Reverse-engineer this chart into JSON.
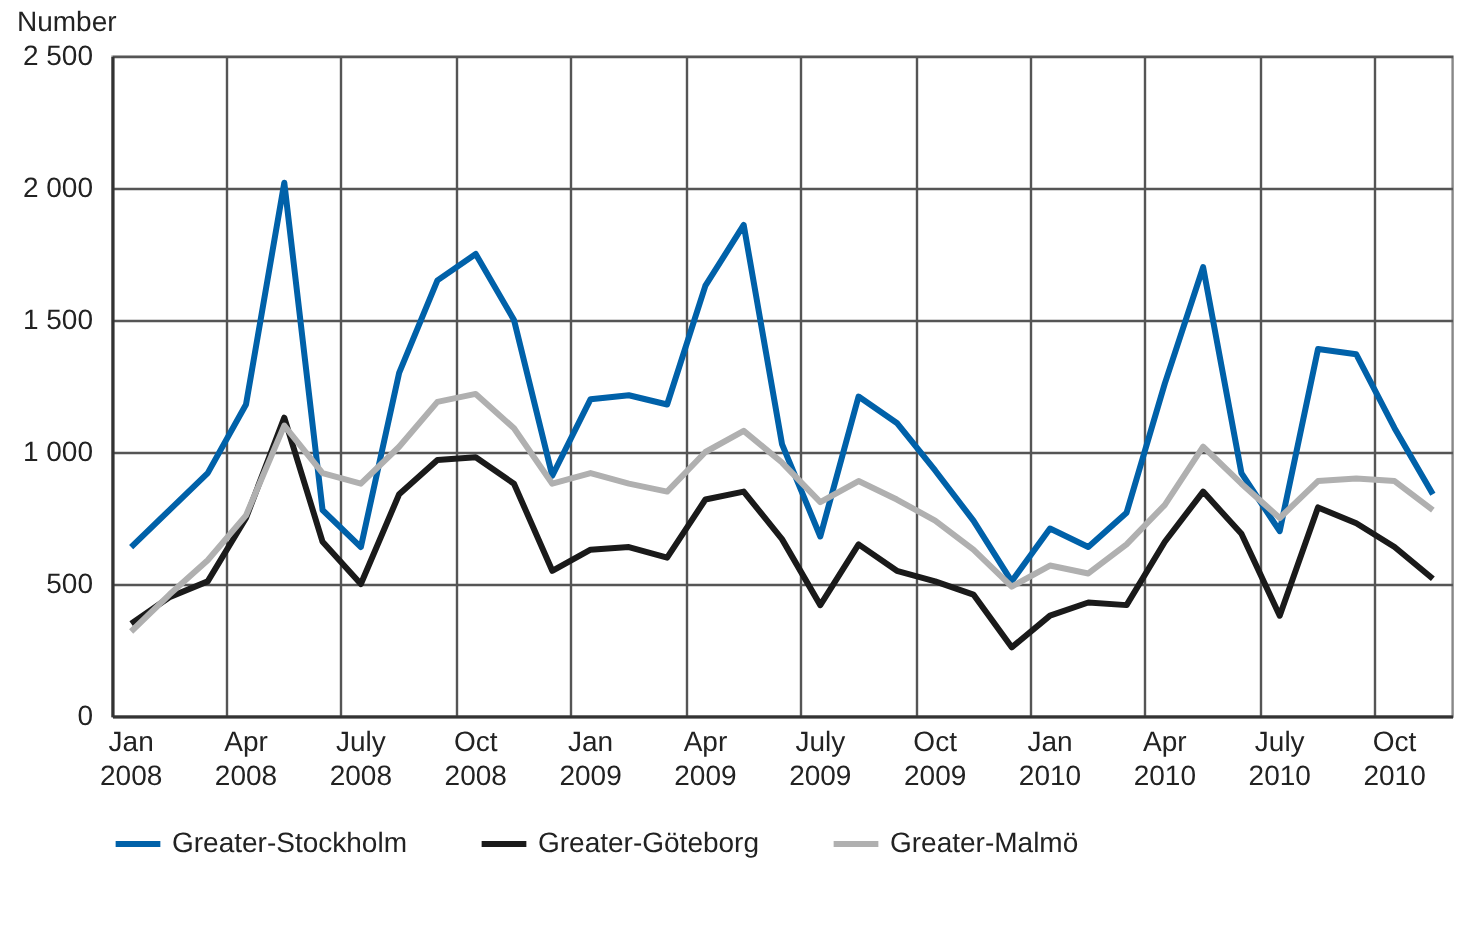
{
  "chart_data": {
    "type": "line",
    "ylabel": "Number",
    "categories": [
      "Jan 2008",
      null,
      null,
      "Apr 2008",
      null,
      null,
      "July 2008",
      null,
      null,
      "Oct 2008",
      null,
      null,
      "Jan 2009",
      null,
      null,
      "Apr 2009",
      null,
      null,
      "July 2009",
      null,
      null,
      "Oct 2009",
      null,
      null,
      "Jan 2010",
      null,
      null,
      "Apr 2010",
      null,
      null,
      "July 2010",
      null,
      null,
      "Oct 2010",
      null
    ],
    "series": [
      {
        "name": "Greater-Stockholm",
        "color": "#0061a9",
        "values": [
          640,
          780,
          920,
          1180,
          2020,
          780,
          640,
          1300,
          1650,
          1750,
          1500,
          910,
          1200,
          1215,
          1180,
          1630,
          1860,
          1030,
          680,
          1210,
          1110,
          930,
          740,
          510,
          710,
          640,
          770,
          1260,
          1700,
          920,
          700,
          1390,
          1370,
          1090,
          840
        ]
      },
      {
        "name": "Greater-Göteborg",
        "color": "#1a1a1a",
        "values": [
          350,
          450,
          510,
          750,
          1130,
          660,
          500,
          840,
          970,
          980,
          880,
          550,
          630,
          640,
          600,
          820,
          850,
          670,
          420,
          650,
          550,
          510,
          460,
          260,
          380,
          430,
          420,
          660,
          850,
          690,
          380,
          790,
          730,
          640,
          520
        ]
      },
      {
        "name": "Greater-Malmö",
        "color": "#b0b0b0",
        "values": [
          320,
          460,
          590,
          760,
          1100,
          920,
          880,
          1020,
          1190,
          1220,
          1090,
          880,
          920,
          880,
          850,
          1000,
          1080,
          960,
          810,
          890,
          820,
          740,
          630,
          490,
          570,
          540,
          650,
          800,
          1020,
          880,
          750,
          890,
          900,
          890,
          780
        ]
      }
    ],
    "ylim": [
      0,
      2500
    ],
    "yticks": [
      0,
      500,
      {
        "value": 1000,
        "label": "1 000"
      },
      {
        "value": 1500,
        "label": "1 500"
      },
      {
        "value": 2000,
        "label": "2 000"
      },
      {
        "value": 2500,
        "label": "2 500"
      }
    ],
    "grid": true,
    "legend": "bottom"
  }
}
